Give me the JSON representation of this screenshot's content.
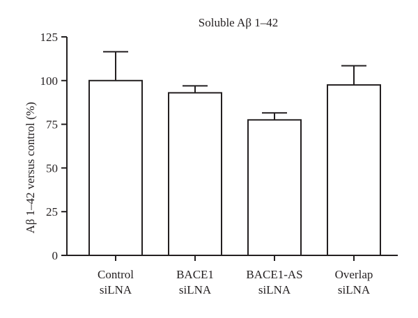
{
  "chart_data": {
    "type": "bar",
    "title": "Soluble Aβ 1–42",
    "ylabel": "Aβ 1–42 versus control (%)",
    "xlabel": "",
    "categories": [
      [
        "Control",
        "siLNA"
      ],
      [
        "BACE1",
        "siLNA"
      ],
      [
        "BACE1-AS",
        "siLNA"
      ],
      [
        "Overlap",
        "siLNA"
      ]
    ],
    "values": [
      100,
      93,
      77.5,
      97.5
    ],
    "errors": [
      16.5,
      4,
      4,
      11
    ],
    "ylim": [
      0,
      125
    ],
    "yticks": [
      "0",
      "25",
      "50",
      "75",
      "100",
      "125"
    ],
    "grid": false,
    "bar_fill": "#ffffff",
    "line_color": "#231f20"
  }
}
